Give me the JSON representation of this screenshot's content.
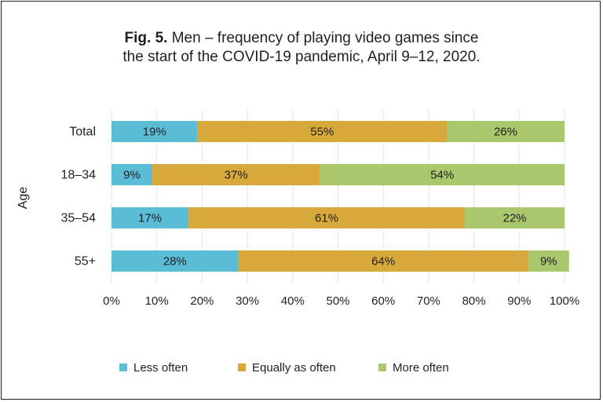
{
  "title": {
    "label": "Fig. 5.",
    "line1": "Men – frequency of playing video games since",
    "line2": "the start of the COVID-19 pandemic, April 9–12, 2020."
  },
  "chart_data": {
    "type": "bar",
    "orientation": "horizontal",
    "stacked": true,
    "ylabel": "Age",
    "xlabel": "",
    "categories": [
      "Total",
      "18–34",
      "35–54",
      "55+"
    ],
    "series": [
      {
        "name": "Less often",
        "values": [
          19,
          9,
          17,
          28
        ],
        "labels": [
          "19%",
          "9%",
          "17%",
          "28%"
        ],
        "color": "#5bbcd6"
      },
      {
        "name": "Equally as often",
        "values": [
          55,
          37,
          61,
          64
        ],
        "labels": [
          "55%",
          "37%",
          "61%",
          "64%"
        ],
        "color": "#d6a93a"
      },
      {
        "name": "More often",
        "values": [
          26,
          54,
          22,
          9
        ],
        "labels": [
          "26%",
          "54%",
          "22%",
          "9%"
        ],
        "color": "#a9c76d"
      }
    ],
    "xlim": [
      0,
      100
    ],
    "xticks": [
      "0%",
      "10%",
      "20%",
      "30%",
      "40%",
      "50%",
      "60%",
      "70%",
      "80%",
      "90%",
      "100%"
    ],
    "grid": true,
    "legend_position": "bottom"
  }
}
